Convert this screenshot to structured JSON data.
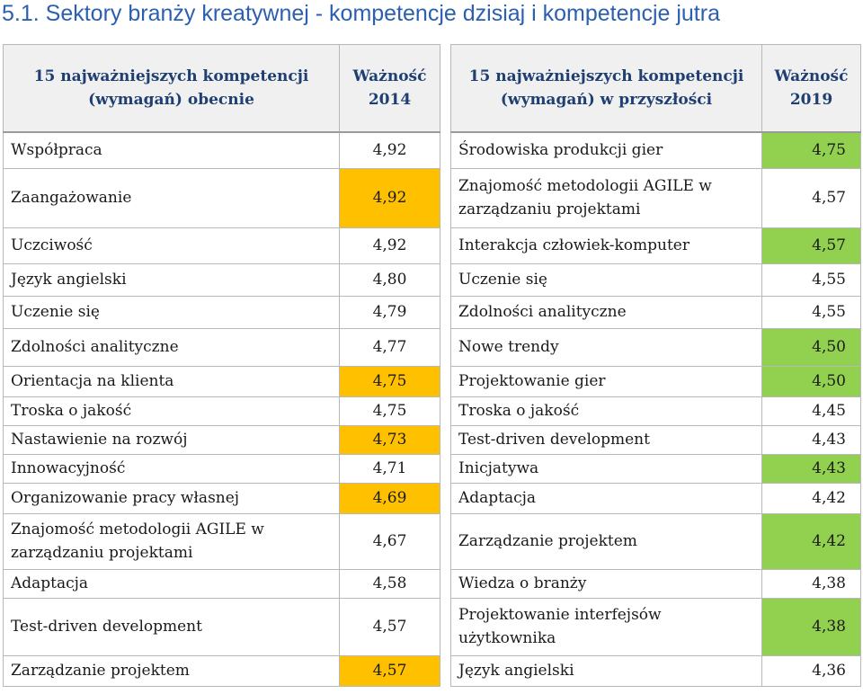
{
  "title": "5.1. Sektory branży kreatywnej -  kompetencje dzisiaj i kompetencje jutra",
  "colors": {
    "orange": "#ffc000",
    "green": "#92d050",
    "title_blue": "#2b5fb0",
    "header_blue": "#1f3f73"
  },
  "left_table": {
    "header_name": "15 najważniejszych kompetencji (wymagań) obecnie",
    "header_value": "Ważność 2014",
    "rows": [
      {
        "name": "Współpraca",
        "value": "4,92",
        "hl": ""
      },
      {
        "name": "Zaangażowanie",
        "value": "4,92",
        "hl": "orange"
      },
      {
        "name": "Uczciwość",
        "value": "4,92",
        "hl": ""
      },
      {
        "name": "Język angielski",
        "value": "4,80",
        "hl": ""
      },
      {
        "name": "Uczenie się",
        "value": "4,79",
        "hl": ""
      },
      {
        "name": "Zdolności analityczne",
        "value": "4,77",
        "hl": ""
      },
      {
        "name": "Orientacja na klienta",
        "value": "4,75",
        "hl": "orange"
      },
      {
        "name": "Troska o jakość",
        "value": "4,75",
        "hl": ""
      },
      {
        "name": "Nastawienie na rozwój",
        "value": "4,73",
        "hl": "orange"
      },
      {
        "name": "Innowacyjność",
        "value": "4,71",
        "hl": ""
      },
      {
        "name": "Organizowanie pracy własnej",
        "value": "4,69",
        "hl": "orange"
      },
      {
        "name": "Znajomość metodologii AGILE w zarządzaniu projektami",
        "value": "4,67",
        "hl": ""
      },
      {
        "name": "Adaptacja",
        "value": "4,58",
        "hl": ""
      },
      {
        "name": "Test-driven development",
        "value": "4,57",
        "hl": ""
      },
      {
        "name": "Zarządzanie projektem",
        "value": "4,57",
        "hl": "orange"
      }
    ]
  },
  "right_table": {
    "header_name": "15 najważniejszych kompetencji (wymagań) w przyszłości",
    "header_value": "Ważność 2019",
    "rows": [
      {
        "name": "Środowiska produkcji gier",
        "value": "4,75",
        "hl": "green"
      },
      {
        "name": "Znajomość metodologii AGILE w zarządzaniu projektami",
        "value": "4,57",
        "hl": ""
      },
      {
        "name": "Interakcja człowiek-komputer",
        "value": "4,57",
        "hl": "green"
      },
      {
        "name": "Uczenie się",
        "value": "4,55",
        "hl": ""
      },
      {
        "name": "Zdolności analityczne",
        "value": "4,55",
        "hl": ""
      },
      {
        "name": "Nowe trendy",
        "value": "4,50",
        "hl": "green"
      },
      {
        "name": "Projektowanie gier",
        "value": "4,50",
        "hl": "green"
      },
      {
        "name": "Troska o jakość",
        "value": "4,45",
        "hl": ""
      },
      {
        "name": "Test-driven development",
        "value": "4,43",
        "hl": ""
      },
      {
        "name": "Inicjatywa",
        "value": "4,43",
        "hl": "green"
      },
      {
        "name": "Adaptacja",
        "value": "4,42",
        "hl": ""
      },
      {
        "name": "Zarządzanie projektem",
        "value": "4,42",
        "hl": "green"
      },
      {
        "name": "Wiedza o branży",
        "value": "4,38",
        "hl": ""
      },
      {
        "name": "Projektowanie interfejsów użytkownika",
        "value": "4,38",
        "hl": "green"
      },
      {
        "name": "Język angielski",
        "value": "4,36",
        "hl": ""
      }
    ]
  }
}
